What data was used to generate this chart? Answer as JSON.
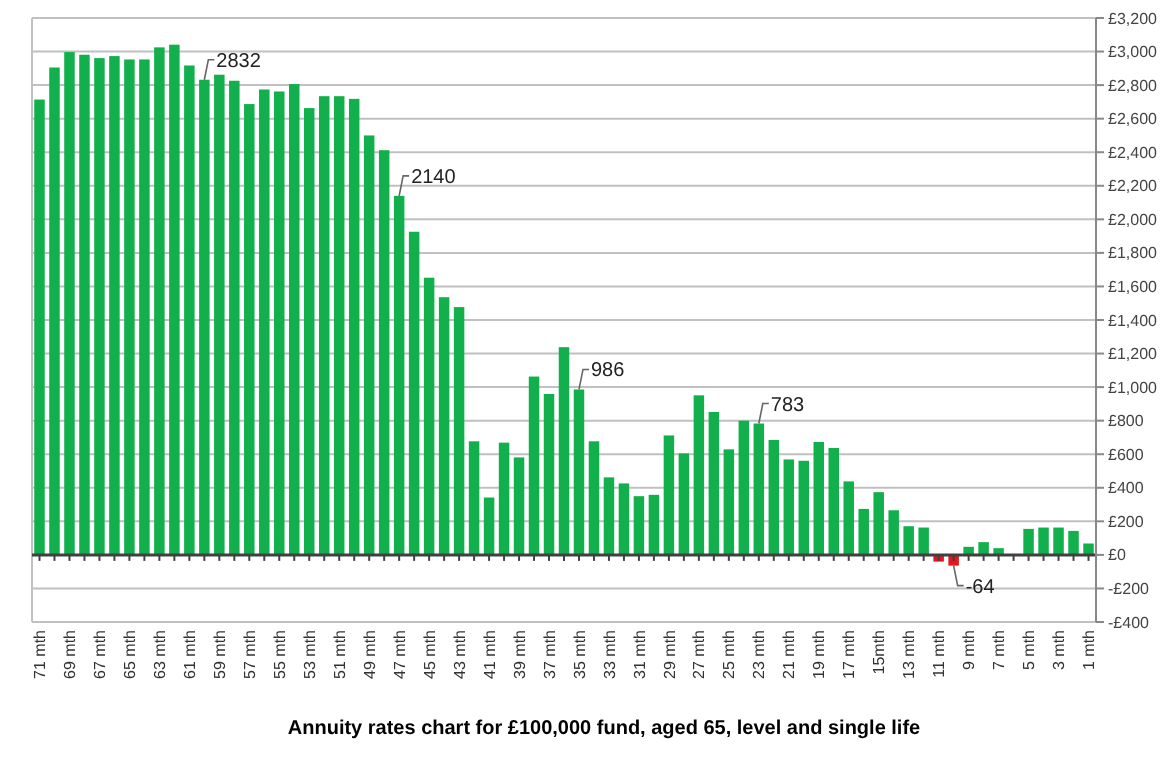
{
  "chart_data": {
    "type": "bar",
    "title": "Annuity rates chart for £100,000 fund, aged 65, level and single life",
    "categories": [
      "71 mth",
      null,
      "69 mth",
      null,
      "67 mth",
      null,
      "65 mth",
      null,
      "63 mth",
      null,
      "61 mth",
      null,
      "59 mth",
      null,
      "57 mth",
      null,
      "55 mth",
      null,
      "53 mth",
      null,
      "51 mth",
      null,
      "49 mth",
      null,
      "47 mth",
      null,
      "45 mth",
      null,
      "43 mth",
      null,
      "41 mth",
      null,
      "39 mth",
      null,
      "37 mth",
      null,
      "35 mth",
      null,
      "33 mth",
      null,
      "31 mth",
      null,
      "29 mth",
      null,
      "27 mth",
      null,
      "25 mth",
      null,
      "23 mth",
      null,
      "21 mth",
      null,
      "19 mth",
      null,
      "17 mth",
      null,
      "15mth",
      null,
      "13 mth",
      null,
      "11 mth",
      null,
      "9 mth",
      null,
      "7 mth",
      null,
      "5 mth",
      null,
      "3 mth",
      null,
      "1 mth"
    ],
    "values": [
      2714,
      2905,
      2997,
      2981,
      2961,
      2973,
      2953,
      2953,
      3025,
      3041,
      2917,
      2832,
      2862,
      2826,
      2687,
      2774,
      2762,
      2806,
      2663,
      2734,
      2734,
      2718,
      2500,
      2412,
      2140,
      1926,
      1652,
      1536,
      1477,
      677,
      342,
      669,
      581,
      1063,
      959,
      1238,
      986,
      677,
      462,
      426,
      350,
      358,
      712,
      605,
      951,
      852,
      629,
      800,
      783,
      685,
      569,
      561,
      673,
      637,
      438,
      274,
      374,
      266,
      171,
      163,
      -40,
      -64,
      48,
      76,
      40,
      0,
      155,
      163,
      163,
      143,
      68
    ],
    "colors": [
      "#12b04c",
      "#12b04c",
      "#12b04c",
      "#12b04c",
      "#12b04c",
      "#12b04c",
      "#12b04c",
      "#12b04c",
      "#12b04c",
      "#12b04c",
      "#12b04c",
      "#12b04c",
      "#12b04c",
      "#12b04c",
      "#12b04c",
      "#12b04c",
      "#12b04c",
      "#12b04c",
      "#12b04c",
      "#12b04c",
      "#12b04c",
      "#12b04c",
      "#12b04c",
      "#12b04c",
      "#12b04c",
      "#12b04c",
      "#12b04c",
      "#12b04c",
      "#12b04c",
      "#12b04c",
      "#12b04c",
      "#12b04c",
      "#12b04c",
      "#12b04c",
      "#12b04c",
      "#12b04c",
      "#12b04c",
      "#12b04c",
      "#12b04c",
      "#12b04c",
      "#12b04c",
      "#12b04c",
      "#12b04c",
      "#12b04c",
      "#12b04c",
      "#12b04c",
      "#12b04c",
      "#12b04c",
      "#12b04c",
      "#12b04c",
      "#12b04c",
      "#12b04c",
      "#12b04c",
      "#12b04c",
      "#12b04c",
      "#12b04c",
      "#12b04c",
      "#12b04c",
      "#12b04c",
      "#12b04c",
      "#e8141b",
      "#e8141b",
      "#12b04c",
      "#12b04c",
      "#12b04c",
      "#12b04c",
      "#12b04c",
      "#12b04c",
      "#12b04c",
      "#12b04c",
      "#12b04c"
    ],
    "value_labels": [
      null,
      null,
      null,
      null,
      null,
      null,
      null,
      null,
      null,
      null,
      null,
      "2832",
      null,
      null,
      null,
      null,
      null,
      null,
      null,
      null,
      null,
      null,
      null,
      null,
      "2140",
      null,
      null,
      null,
      null,
      null,
      null,
      null,
      null,
      null,
      null,
      null,
      "986",
      null,
      null,
      null,
      null,
      null,
      null,
      null,
      null,
      null,
      null,
      null,
      "783",
      null,
      null,
      null,
      null,
      null,
      null,
      null,
      null,
      null,
      null,
      null,
      null,
      "-64",
      null,
      null,
      null,
      null,
      null,
      null,
      null,
      null,
      null
    ],
    "ylim": [
      -400,
      3200
    ],
    "yticks": [
      {
        "value": -400,
        "label": "-£400"
      },
      {
        "value": -200,
        "label": "-£200"
      },
      {
        "value": 0,
        "label": "£0"
      },
      {
        "value": 200,
        "label": "£200"
      },
      {
        "value": 400,
        "label": "£400"
      },
      {
        "value": 600,
        "label": "£600"
      },
      {
        "value": 800,
        "label": "£800"
      },
      {
        "value": 1000,
        "label": "£1,000"
      },
      {
        "value": 1200,
        "label": "£1,200"
      },
      {
        "value": 1400,
        "label": "£1,400"
      },
      {
        "value": 1600,
        "label": "£1,600"
      },
      {
        "value": 1800,
        "label": "£1,800"
      },
      {
        "value": 2000,
        "label": "£2,000"
      },
      {
        "value": 2200,
        "label": "£2,200"
      },
      {
        "value": 2400,
        "label": "£2,400"
      },
      {
        "value": 2600,
        "label": "£2,600"
      },
      {
        "value": 2800,
        "label": "£2,800"
      },
      {
        "value": 3000,
        "label": "£3,000"
      },
      {
        "value": 3200,
        "label": "£3,200"
      }
    ],
    "grid": "y"
  }
}
